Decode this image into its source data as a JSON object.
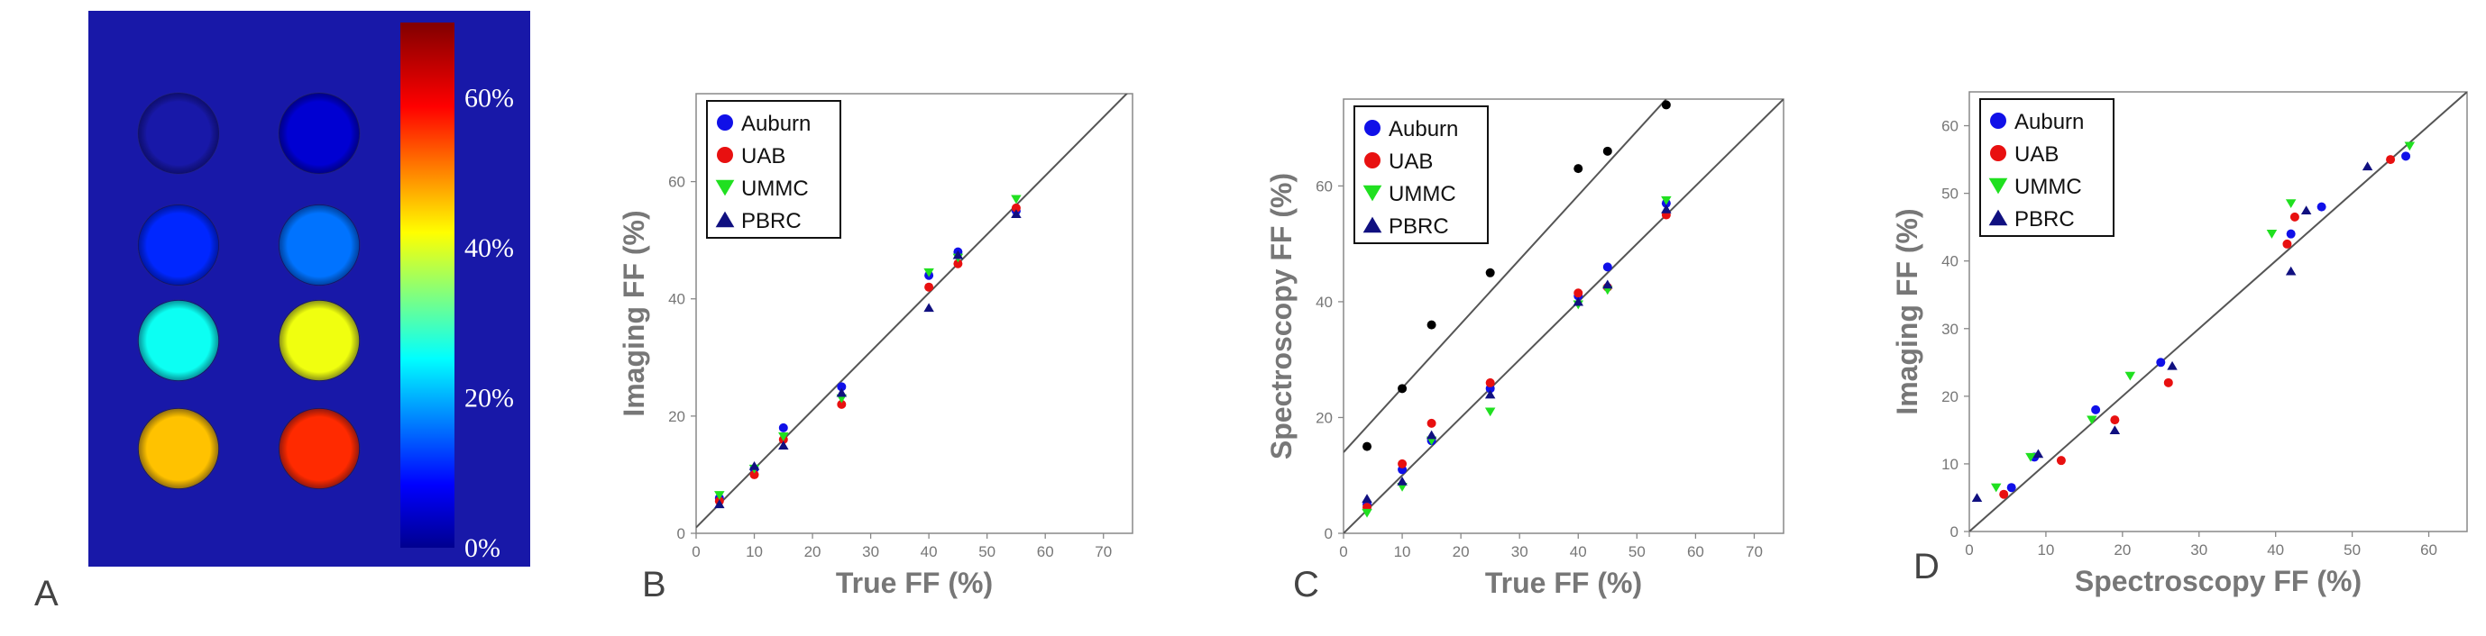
{
  "colors": {
    "Auburn": "#1010e8",
    "UAB": "#e81010",
    "UMMC": "#20e020",
    "PBRC": "#101080",
    "extra": "#000000",
    "phantom_bg": "#1818a8"
  },
  "panel_A": {
    "letter": "A",
    "colorbar_ticks": [
      "60%",
      "40%",
      "20%",
      "0%"
    ],
    "colorbar_values": [
      60,
      40,
      20,
      0
    ],
    "colorbar_max": 70,
    "vials": [
      {
        "row": 0,
        "col": 0,
        "ff": 0
      },
      {
        "row": 0,
        "col": 1,
        "ff": 4
      },
      {
        "row": 1,
        "col": 0,
        "ff": 10
      },
      {
        "row": 1,
        "col": 1,
        "ff": 15
      },
      {
        "row": 2,
        "col": 0,
        "ff": 25
      },
      {
        "row": 2,
        "col": 1,
        "ff": 40
      },
      {
        "row": 3,
        "col": 0,
        "ff": 45
      },
      {
        "row": 3,
        "col": 1,
        "ff": 55
      }
    ]
  },
  "chart_data": [
    {
      "panel": "B",
      "type": "scatter",
      "xlabel": "True FF (%)",
      "ylabel": "Imaging FF (%)",
      "xlim": [
        0,
        75
      ],
      "ylim": [
        0,
        75
      ],
      "xticks": [
        0,
        10,
        20,
        30,
        40,
        50,
        60,
        70
      ],
      "yticks": [
        0,
        20,
        40,
        60
      ],
      "legend": [
        "Auburn",
        "UAB",
        "UMMC",
        "PBRC"
      ],
      "legend_position": "top-left",
      "lines": [
        {
          "x": [
            0,
            75
          ],
          "y": [
            1,
            76
          ]
        }
      ],
      "series": [
        {
          "name": "Auburn",
          "marker": "circle",
          "x": [
            4,
            10,
            15,
            25,
            40,
            45,
            55
          ],
          "y": [
            6,
            11,
            18,
            25,
            44,
            48,
            55
          ]
        },
        {
          "name": "UAB",
          "marker": "circle",
          "x": [
            4,
            10,
            15,
            25,
            40,
            45,
            55
          ],
          "y": [
            5.5,
            10,
            16,
            22,
            42,
            46,
            55.5
          ]
        },
        {
          "name": "UMMC",
          "marker": "triangle-down",
          "x": [
            4,
            10,
            15,
            25,
            40,
            45,
            55
          ],
          "y": [
            6.5,
            11,
            16.5,
            23,
            44.5,
            47,
            57
          ]
        },
        {
          "name": "PBRC",
          "marker": "triangle-up",
          "x": [
            4,
            10,
            15,
            25,
            40,
            45,
            55
          ],
          "y": [
            5,
            11.5,
            15,
            24,
            38.5,
            47.5,
            54.5
          ]
        }
      ]
    },
    {
      "panel": "C",
      "type": "scatter",
      "xlabel": "True FF (%)",
      "ylabel": "Spectroscopy  FF (%)",
      "xlim": [
        0,
        75
      ],
      "ylim": [
        0,
        75
      ],
      "xticks": [
        0,
        10,
        20,
        30,
        40,
        50,
        60,
        70
      ],
      "yticks": [
        0,
        20,
        40,
        60
      ],
      "legend": [
        "Auburn",
        "UAB",
        "UMMC",
        "PBRC"
      ],
      "legend_position": "top-left",
      "lines": [
        {
          "x": [
            0,
            55
          ],
          "y": [
            14,
            75
          ]
        },
        {
          "x": [
            0,
            75
          ],
          "y": [
            0,
            75
          ]
        }
      ],
      "series": [
        {
          "name": "Auburn",
          "marker": "circle",
          "x": [
            4,
            10,
            15,
            25,
            40,
            45,
            55
          ],
          "y": [
            5,
            11,
            16,
            25,
            41,
            46,
            57
          ]
        },
        {
          "name": "UAB",
          "marker": "circle",
          "x": [
            4,
            10,
            15,
            25,
            40,
            45,
            55
          ],
          "y": [
            4.5,
            12,
            19,
            26,
            41.5,
            42.5,
            55
          ]
        },
        {
          "name": "UMMC",
          "marker": "triangle-down",
          "x": [
            4,
            10,
            15,
            25,
            40,
            45,
            55
          ],
          "y": [
            3.5,
            8,
            16,
            21,
            39.5,
            42,
            57.5
          ]
        },
        {
          "name": "PBRC",
          "marker": "triangle-up",
          "x": [
            4,
            10,
            15,
            25,
            40,
            45,
            55
          ],
          "y": [
            6,
            9,
            17,
            24,
            40,
            43,
            56
          ]
        },
        {
          "name": "",
          "marker": "circle",
          "x": [
            4,
            10,
            15,
            25,
            40,
            45,
            55
          ],
          "y": [
            15,
            25,
            36,
            45,
            63,
            66,
            74
          ]
        }
      ]
    },
    {
      "panel": "D",
      "type": "scatter",
      "xlabel": "Spectroscopy  FF (%)",
      "ylabel": "Imaging FF (%)",
      "xlim": [
        0,
        65
      ],
      "ylim": [
        0,
        65
      ],
      "xticks": [
        0,
        10,
        20,
        30,
        40,
        50,
        60
      ],
      "yticks": [
        0,
        10,
        20,
        30,
        40,
        50,
        60
      ],
      "legend": [
        "Auburn",
        "UAB",
        "UMMC",
        "PBRC"
      ],
      "legend_position": "top-left",
      "lines": [
        {
          "x": [
            0,
            65
          ],
          "y": [
            0,
            65
          ]
        }
      ],
      "series": [
        {
          "name": "Auburn",
          "marker": "circle",
          "x": [
            5.5,
            8.5,
            16.5,
            25,
            42,
            46,
            57
          ],
          "y": [
            6.5,
            11,
            18,
            25,
            44,
            48,
            55.5
          ]
        },
        {
          "name": "UAB",
          "marker": "circle",
          "x": [
            4.5,
            12,
            19,
            26,
            41.5,
            42.5,
            55
          ],
          "y": [
            5.5,
            10.5,
            16.5,
            22,
            42.5,
            46.5,
            55
          ]
        },
        {
          "name": "UMMC",
          "marker": "triangle-down",
          "x": [
            3.5,
            8,
            16,
            21,
            39.5,
            42,
            57.5
          ],
          "y": [
            6.5,
            11,
            16.5,
            23,
            44,
            48.5,
            57
          ]
        },
        {
          "name": "PBRC",
          "marker": "triangle-up",
          "x": [
            1,
            9,
            19,
            26.5,
            42,
            44,
            52
          ],
          "y": [
            5,
            11.5,
            15,
            24.5,
            38.5,
            47.5,
            54
          ]
        }
      ]
    }
  ]
}
